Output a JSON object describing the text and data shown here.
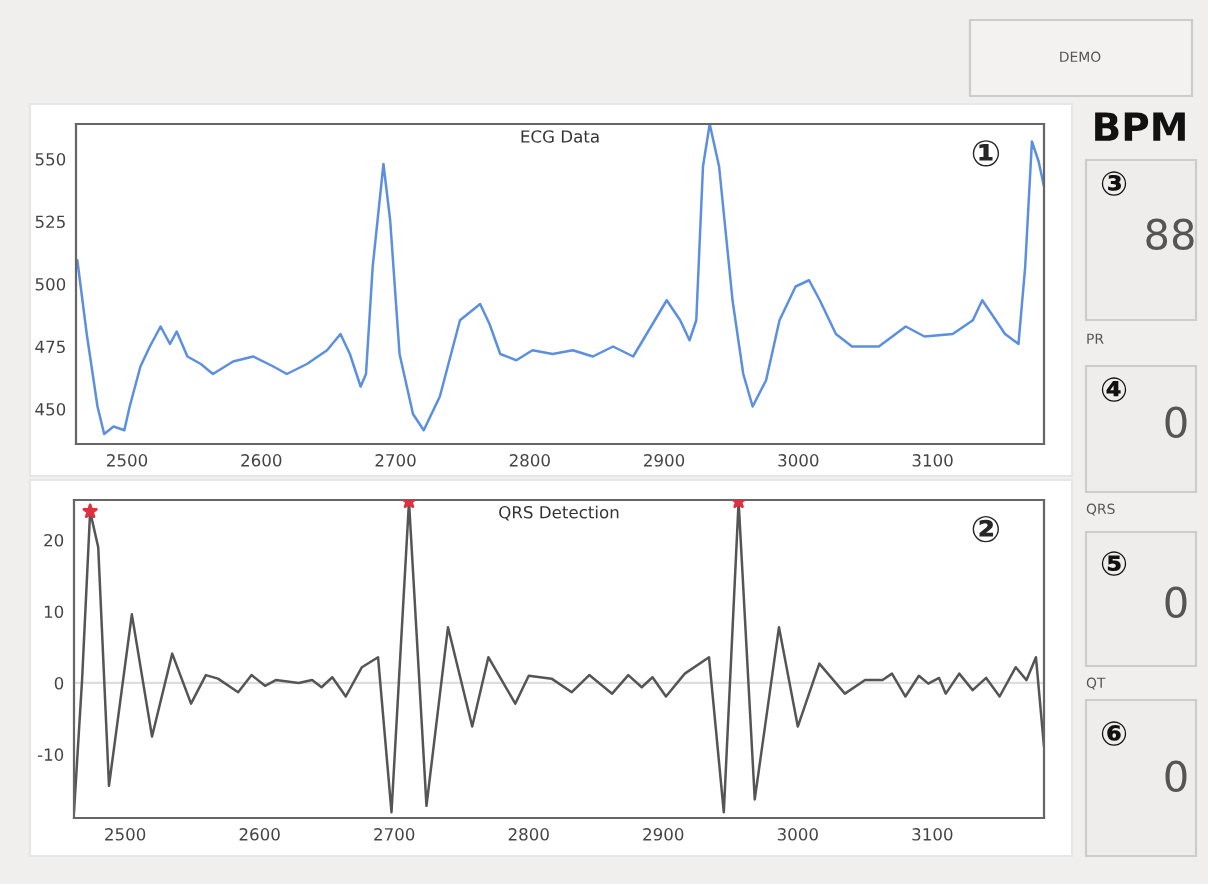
{
  "chart_data": [
    {
      "type": "line",
      "title": "ECG Data",
      "annotations": [
        "①"
      ],
      "xlim": [
        2462,
        3183
      ],
      "ylim": [
        436,
        564
      ],
      "xticks": [
        2500,
        2600,
        2700,
        2800,
        2900,
        3000,
        3100
      ],
      "yticks": [
        450,
        475,
        500,
        525,
        550
      ],
      "grid": false,
      "legend": false,
      "marker": "none",
      "line_style": "solid",
      "series": [
        {
          "color": "#5b8fe0",
          "x": [
            2463,
            2470,
            2478,
            2483,
            2490,
            2498,
            2502,
            2510,
            2517,
            2525,
            2532,
            2537,
            2545,
            2555,
            2564,
            2579,
            2594,
            2609,
            2619,
            2634,
            2649,
            2659,
            2666,
            2674,
            2678,
            2683,
            2691,
            2696,
            2703,
            2713,
            2721,
            2733,
            2748,
            2763,
            2770,
            2778,
            2790,
            2802,
            2817,
            2832,
            2847,
            2862,
            2877,
            2887,
            2902,
            2912,
            2919,
            2924,
            2929,
            2934,
            2941,
            2951,
            2959,
            2966,
            2976,
            2986,
            2998,
            3008,
            3016,
            3028,
            3040,
            3060,
            3080,
            3094,
            3115,
            3130,
            3137,
            3144,
            3154,
            3164,
            3169,
            3174,
            3179,
            3183
          ],
          "values": [
            509.5,
            480,
            451,
            440,
            443,
            441.5,
            451,
            467,
            475,
            483,
            476,
            481,
            471,
            468,
            464,
            469,
            471,
            467,
            464,
            468,
            473.5,
            480,
            472,
            459,
            464,
            507,
            548,
            525.5,
            472,
            448,
            441.5,
            455,
            485.5,
            492,
            484,
            472,
            469.5,
            473.5,
            472,
            473.5,
            471,
            475,
            471,
            480,
            493.5,
            485.5,
            477.5,
            485.5,
            547,
            564,
            547,
            493.5,
            464,
            451,
            461.5,
            485.5,
            499,
            501.5,
            493.5,
            480,
            475,
            475,
            483,
            479,
            480,
            485.5,
            493.5,
            488,
            480,
            476,
            507,
            557,
            549,
            539
          ]
        }
      ]
    },
    {
      "type": "line",
      "title": "QRS Detection",
      "annotations": [
        "②"
      ],
      "xlim": [
        2462,
        3183
      ],
      "ylim": [
        -18.9,
        25.6
      ],
      "xticks": [
        2500,
        2600,
        2700,
        2800,
        2900,
        3000,
        3100
      ],
      "yticks": [
        -10,
        0,
        10,
        20
      ],
      "grid": false,
      "legend": false,
      "line_style": "solid",
      "ref_lines": [
        {
          "axis": "y",
          "value": 0,
          "color": "#dddddd"
        }
      ],
      "series": [
        {
          "color": "#555555",
          "marker": "none",
          "x": [
            2462,
            2468,
            2474,
            2480,
            2488,
            2505,
            2520,
            2535,
            2549,
            2560,
            2569,
            2584,
            2594,
            2604,
            2612,
            2629,
            2639,
            2646,
            2654,
            2664,
            2676,
            2688,
            2698,
            2711,
            2724,
            2740,
            2758,
            2770,
            2790,
            2800,
            2817,
            2832,
            2845,
            2862,
            2874,
            2884,
            2892,
            2902,
            2916,
            2934,
            2945,
            2956,
            2968,
            2986,
            3000,
            3016,
            3035,
            3050,
            3063,
            3070,
            3080,
            3090,
            3097,
            3105,
            3110,
            3120,
            3130,
            3140,
            3150,
            3162,
            3170,
            3177,
            3183
          ],
          "values": [
            -18,
            0.4,
            24,
            19,
            -14.4,
            9.6,
            -7.5,
            4.1,
            -2.9,
            1.1,
            0.6,
            -1.3,
            1.1,
            -0.4,
            0.4,
            0,
            0.4,
            -0.6,
            0.8,
            -1.9,
            2.2,
            3.6,
            -18.1,
            25.4,
            -17.2,
            7.8,
            -6.1,
            3.6,
            -2.9,
            1,
            0.6,
            -1.3,
            1.1,
            -1.5,
            1.1,
            -0.6,
            0.8,
            -1.9,
            1.3,
            3.6,
            -18.1,
            25.4,
            -16.3,
            7.8,
            -6.1,
            2.7,
            -1.5,
            0.4,
            0.4,
            1.3,
            -1.9,
            1,
            -0.1,
            0.7,
            -1.5,
            1.3,
            -1,
            0.7,
            -1.9,
            2.2,
            0.4,
            3.6,
            -8.9
          ]
        },
        {
          "type": "scatter",
          "color": "#e03040",
          "marker": "star",
          "x": [
            2474,
            2711,
            2956
          ],
          "values": [
            24,
            25.4,
            25.4
          ]
        }
      ]
    },
    {
      "type": "other",
      "annotations": [
        "DEMO",
        "BPM",
        "③",
        "88",
        "PR",
        "④",
        "0",
        "QRS",
        "⑤",
        "0",
        "QT",
        "⑥",
        "0"
      ]
    }
  ]
}
